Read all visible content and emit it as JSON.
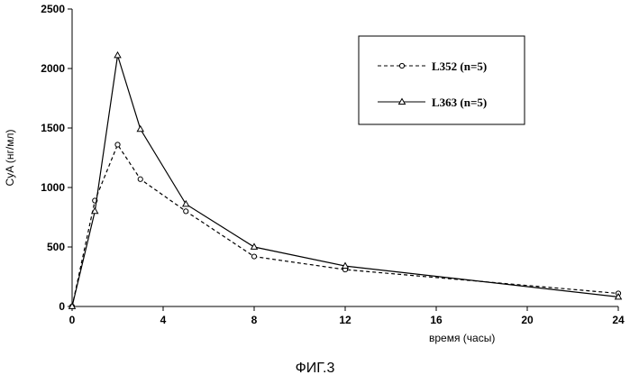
{
  "chart_data": {
    "type": "line",
    "title": "",
    "xlabel": "время (часы)",
    "ylabel": "CyA (нг/мл)",
    "xlim": [
      0,
      24
    ],
    "ylim": [
      0,
      2500
    ],
    "xticks": [
      0,
      4,
      8,
      12,
      16,
      20,
      24
    ],
    "yticks": [
      0,
      500,
      1000,
      1500,
      2000,
      2500
    ],
    "grid": false,
    "legend_position": "top-right",
    "series": [
      {
        "name": "L352 (n=5)",
        "line_style": "dashed",
        "marker": "circle",
        "x": [
          0,
          1,
          2,
          3,
          5,
          8,
          12,
          24
        ],
        "y": [
          0,
          890,
          1360,
          1070,
          800,
          420,
          310,
          110
        ]
      },
      {
        "name": "L363 (n=5)",
        "line_style": "solid",
        "marker": "triangle",
        "x": [
          0,
          1,
          2,
          3,
          5,
          8,
          12,
          24
        ],
        "y": [
          0,
          800,
          2110,
          1490,
          860,
          500,
          340,
          80
        ]
      }
    ]
  },
  "caption": "ФИГ.3",
  "colors": {
    "line": "#000000",
    "background": "#ffffff"
  }
}
